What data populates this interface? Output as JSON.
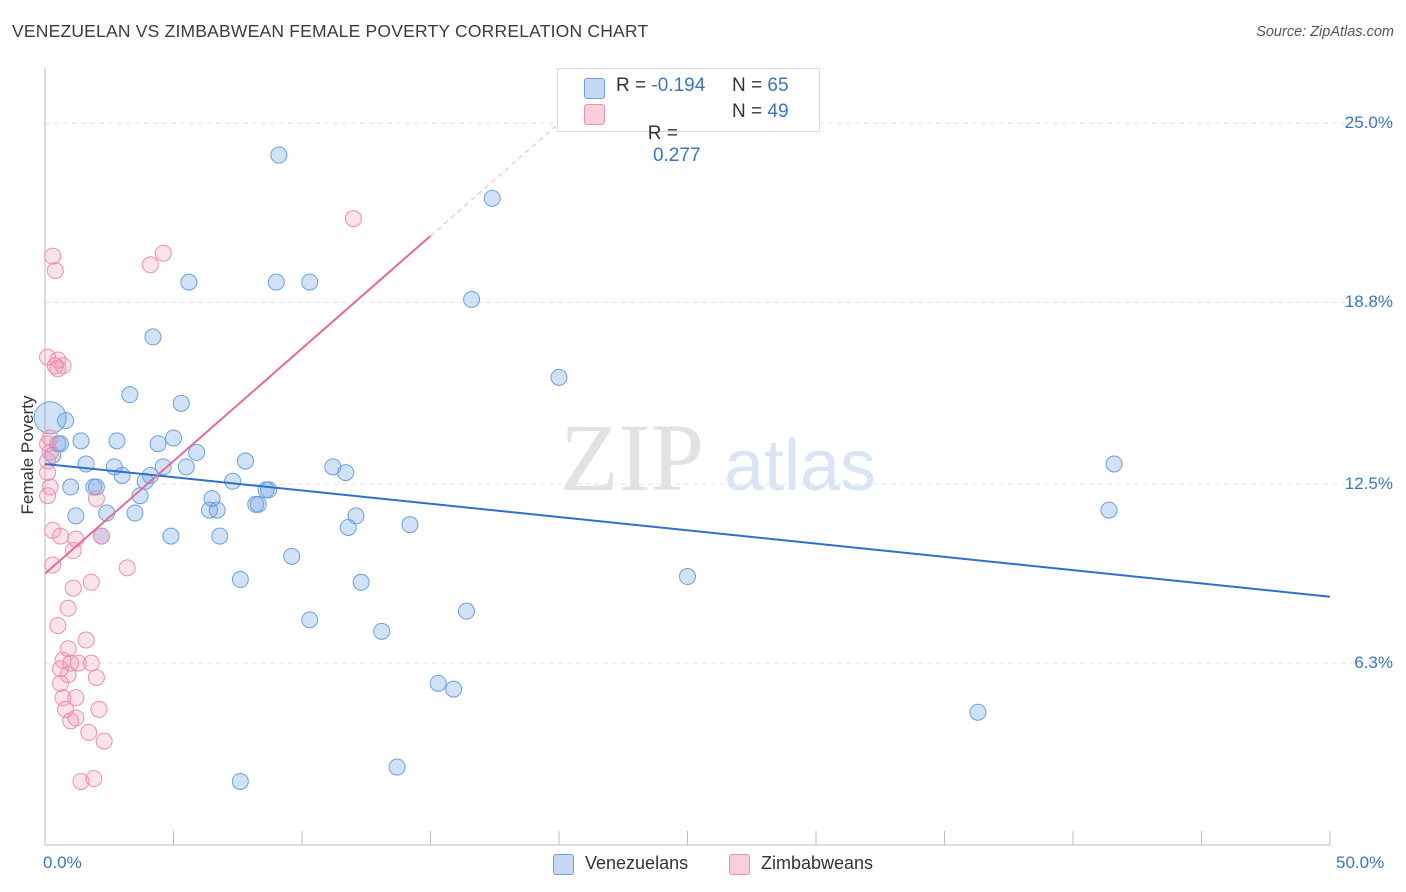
{
  "title": "VENEZUELAN VS ZIMBABWEAN FEMALE POVERTY CORRELATION CHART",
  "source": "Source: ZipAtlas.com",
  "watermark": {
    "zip": "ZIP",
    "atlas": "atlas"
  },
  "legend": {
    "r_label": "R =",
    "n_label": "N =",
    "rows": [
      {
        "r": "-0.194",
        "n": "65",
        "color": "#6b9fe0"
      },
      {
        "r": " 0.277",
        "n": "49",
        "color": "#f08eb0"
      }
    ]
  },
  "chart_data": {
    "type": "scatter",
    "ylabel": "Female Poverty",
    "xlim": [
      0,
      50
    ],
    "ylim": [
      0,
      26.5
    ],
    "x_tick_labels": [
      "0.0%",
      "50.0%"
    ],
    "y_ticks": [
      6.3,
      12.5,
      18.8,
      25.0
    ],
    "y_tick_labels": [
      "6.3%",
      "12.5%",
      "18.8%",
      "25.0%"
    ],
    "grid": true,
    "series": [
      {
        "name": "Venezuelans",
        "color": "#6b9fe0",
        "trend": {
          "x": [
            0,
            50
          ],
          "y": [
            13.2,
            8.6
          ],
          "style": "solid"
        },
        "points": [
          [
            0.2,
            14.8
          ],
          [
            0.3,
            13.5
          ],
          [
            0.5,
            13.9
          ],
          [
            0.8,
            14.7
          ],
          [
            1.0,
            12.4
          ],
          [
            1.2,
            11.4
          ],
          [
            1.4,
            14.0
          ],
          [
            1.6,
            13.2
          ],
          [
            1.9,
            12.4
          ],
          [
            2.0,
            12.4
          ],
          [
            2.2,
            10.7
          ],
          [
            2.4,
            11.5
          ],
          [
            2.7,
            13.1
          ],
          [
            2.8,
            14.0
          ],
          [
            3.0,
            12.8
          ],
          [
            3.3,
            15.6
          ],
          [
            3.5,
            11.5
          ],
          [
            3.7,
            12.1
          ],
          [
            3.9,
            12.6
          ],
          [
            4.1,
            12.8
          ],
          [
            4.2,
            17.6
          ],
          [
            4.4,
            13.9
          ],
          [
            4.6,
            13.1
          ],
          [
            4.9,
            10.7
          ],
          [
            5.0,
            14.1
          ],
          [
            5.3,
            15.3
          ],
          [
            5.5,
            13.1
          ],
          [
            5.6,
            19.5
          ],
          [
            5.9,
            13.6
          ],
          [
            6.4,
            11.6
          ],
          [
            6.5,
            12.0
          ],
          [
            6.7,
            11.6
          ],
          [
            6.8,
            10.7
          ],
          [
            7.3,
            12.6
          ],
          [
            7.6,
            9.2
          ],
          [
            7.8,
            13.3
          ],
          [
            8.2,
            11.8
          ],
          [
            8.3,
            11.8
          ],
          [
            8.6,
            12.3
          ],
          [
            8.7,
            12.3
          ],
          [
            9.0,
            19.5
          ],
          [
            9.1,
            23.9
          ],
          [
            9.6,
            10.0
          ],
          [
            10.3,
            19.5
          ],
          [
            10.3,
            7.8
          ],
          [
            11.2,
            13.1
          ],
          [
            11.7,
            12.9
          ],
          [
            11.8,
            11.0
          ],
          [
            12.1,
            11.4
          ],
          [
            12.3,
            9.1
          ],
          [
            13.1,
            7.4
          ],
          [
            13.7,
            2.7
          ],
          [
            14.2,
            11.1
          ],
          [
            15.3,
            5.6
          ],
          [
            15.9,
            5.4
          ],
          [
            16.4,
            8.1
          ],
          [
            16.6,
            18.9
          ],
          [
            17.4,
            22.4
          ],
          [
            20.0,
            16.2
          ],
          [
            25.0,
            9.3
          ],
          [
            36.3,
            4.6
          ],
          [
            41.4,
            11.6
          ],
          [
            41.6,
            13.2
          ],
          [
            7.6,
            2.2
          ],
          [
            0.6,
            13.9
          ]
        ]
      },
      {
        "name": "Zimbabweans",
        "color": "#f08eb0",
        "trend": {
          "x": [
            0,
            15
          ],
          "y": [
            9.4,
            21.1
          ],
          "style": "solid",
          "extension": {
            "x": [
              15,
              20
            ],
            "y": [
              21.1,
              25.0
            ],
            "style": "dashed"
          }
        },
        "points": [
          [
            0.1,
            16.9
          ],
          [
            0.1,
            13.9
          ],
          [
            0.1,
            13.3
          ],
          [
            0.1,
            12.9
          ],
          [
            0.1,
            12.1
          ],
          [
            0.2,
            13.6
          ],
          [
            0.2,
            14.1
          ],
          [
            0.3,
            20.4
          ],
          [
            0.3,
            10.9
          ],
          [
            0.3,
            9.7
          ],
          [
            0.4,
            19.9
          ],
          [
            0.4,
            16.6
          ],
          [
            0.5,
            16.8
          ],
          [
            0.5,
            7.6
          ],
          [
            0.6,
            6.1
          ],
          [
            0.6,
            5.6
          ],
          [
            0.6,
            10.7
          ],
          [
            0.7,
            16.6
          ],
          [
            0.7,
            5.1
          ],
          [
            0.7,
            6.4
          ],
          [
            0.8,
            4.7
          ],
          [
            0.9,
            5.9
          ],
          [
            0.9,
            8.2
          ],
          [
            0.9,
            6.8
          ],
          [
            1.0,
            6.3
          ],
          [
            1.0,
            4.3
          ],
          [
            1.1,
            8.9
          ],
          [
            1.1,
            10.2
          ],
          [
            1.2,
            10.6
          ],
          [
            1.2,
            5.1
          ],
          [
            1.2,
            4.4
          ],
          [
            1.3,
            6.3
          ],
          [
            1.4,
            2.2
          ],
          [
            1.6,
            7.1
          ],
          [
            1.7,
            3.9
          ],
          [
            1.8,
            9.1
          ],
          [
            1.8,
            6.3
          ],
          [
            1.9,
            2.3
          ],
          [
            2.0,
            12.0
          ],
          [
            2.0,
            5.8
          ],
          [
            2.1,
            4.7
          ],
          [
            2.2,
            10.7
          ],
          [
            2.3,
            3.6
          ],
          [
            3.2,
            9.6
          ],
          [
            4.1,
            20.1
          ],
          [
            4.6,
            20.5
          ],
          [
            12.0,
            21.7
          ],
          [
            0.5,
            16.5
          ],
          [
            0.2,
            12.4
          ]
        ]
      }
    ]
  },
  "bottom_legend": [
    "Venezuelans",
    "Zimbabweans"
  ]
}
